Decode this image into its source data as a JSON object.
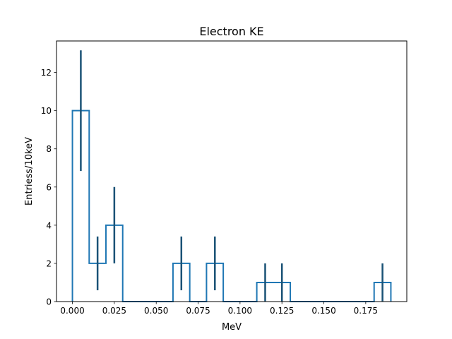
{
  "chart_data": {
    "type": "histogram",
    "title": "Electron KE",
    "xlabel": "MeV",
    "ylabel": "Entriess/10keV",
    "xlim": [
      -0.0095,
      0.1995
    ],
    "ylim": [
      0,
      13.65
    ],
    "xticks": [
      0.0,
      0.025,
      0.05,
      0.075,
      0.1,
      0.125,
      0.15,
      0.175
    ],
    "xtick_labels": [
      "0.000",
      "0.025",
      "0.050",
      "0.075",
      "0.100",
      "0.125",
      "0.150",
      "0.175"
    ],
    "yticks": [
      0,
      2,
      4,
      6,
      8,
      10,
      12
    ],
    "ytick_labels": [
      "0",
      "2",
      "4",
      "6",
      "8",
      "10",
      "12"
    ],
    "bin_width": 0.01,
    "bins": [
      {
        "left": 0.0,
        "count": 10
      },
      {
        "left": 0.01,
        "count": 2
      },
      {
        "left": 0.02,
        "count": 4
      },
      {
        "left": 0.03,
        "count": 0
      },
      {
        "left": 0.04,
        "count": 0
      },
      {
        "left": 0.05,
        "count": 0
      },
      {
        "left": 0.06,
        "count": 2
      },
      {
        "left": 0.07,
        "count": 0
      },
      {
        "left": 0.08,
        "count": 2
      },
      {
        "left": 0.09,
        "count": 0
      },
      {
        "left": 0.1,
        "count": 0
      },
      {
        "left": 0.11,
        "count": 1
      },
      {
        "left": 0.12,
        "count": 1
      },
      {
        "left": 0.13,
        "count": 0
      },
      {
        "left": 0.14,
        "count": 0
      },
      {
        "left": 0.15,
        "count": 0
      },
      {
        "left": 0.16,
        "count": 0
      },
      {
        "left": 0.17,
        "count": 0
      },
      {
        "left": 0.18,
        "count": 1
      }
    ],
    "error_bars": [
      {
        "x": 0.005,
        "low": 6.84,
        "high": 13.16
      },
      {
        "x": 0.015,
        "low": 0.59,
        "high": 3.41
      },
      {
        "x": 0.025,
        "low": 2.0,
        "high": 6.0
      },
      {
        "x": 0.065,
        "low": 0.59,
        "high": 3.41
      },
      {
        "x": 0.085,
        "low": 0.59,
        "high": 3.41
      },
      {
        "x": 0.115,
        "low": 0.0,
        "high": 2.0
      },
      {
        "x": 0.125,
        "low": 0.0,
        "high": 2.0
      },
      {
        "x": 0.185,
        "low": 0.0,
        "high": 2.0
      }
    ],
    "colors": {
      "histogram": "#1f77b4",
      "error_bars": "#1a5276"
    },
    "grid": false,
    "legend": "none"
  }
}
